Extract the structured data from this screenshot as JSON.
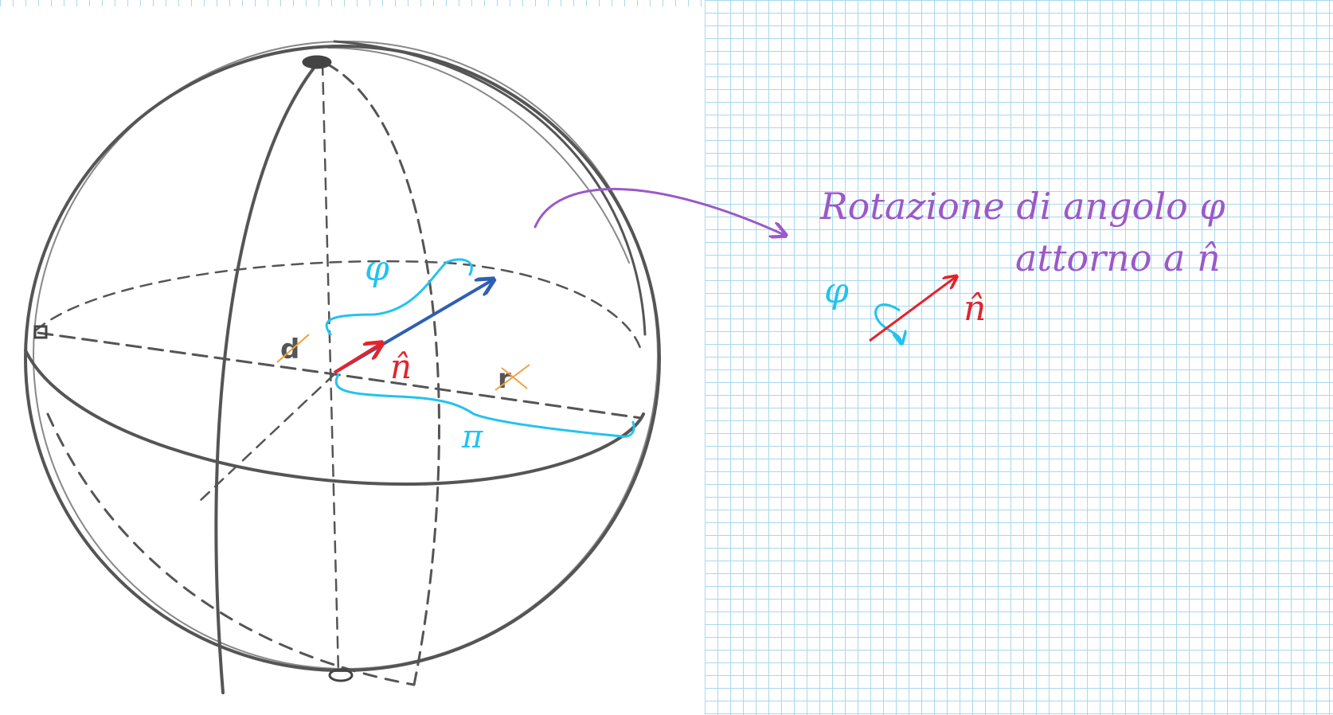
{
  "colors": {
    "sphere": "#555555",
    "annotation_purple": "#9b59c9",
    "cyan": "#22c3ef",
    "red": "#e3232b",
    "blue": "#2f5fb3",
    "orange": "#f0a040",
    "grid": "#a8d8ec"
  },
  "sphere": {
    "label_d": "d",
    "label_r": "r",
    "label_phi": "φ",
    "label_pi": "π",
    "label_n": "n̂"
  },
  "annotation": {
    "line1": "Rotazione di angolo φ",
    "line2": "attorno a n̂",
    "small_phi": "φ",
    "small_n": "n̂"
  }
}
